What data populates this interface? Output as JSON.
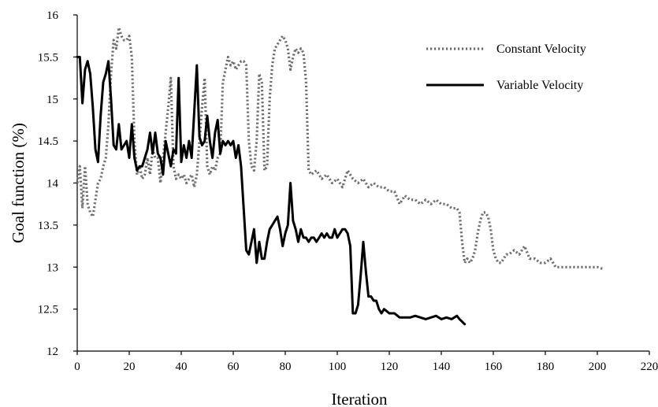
{
  "chart_data": {
    "type": "line",
    "title": "",
    "xlabel": "Iteration",
    "ylabel": "Goal function (%)",
    "xlim": [
      0,
      220
    ],
    "ylim": [
      12,
      16
    ],
    "xticks": [
      0,
      20,
      40,
      60,
      80,
      100,
      120,
      140,
      160,
      180,
      200,
      220
    ],
    "yticks": [
      12,
      12.5,
      13,
      13.5,
      14,
      14.5,
      15,
      15.5,
      16
    ],
    "grid": false,
    "legend_position": "top-right",
    "series": [
      {
        "name": "Constant Velocity",
        "style": "dotted",
        "color": "#6e6e6e",
        "points": [
          [
            0,
            14.0
          ],
          [
            1,
            14.2
          ],
          [
            2,
            13.7
          ],
          [
            3,
            14.2
          ],
          [
            4,
            13.75
          ],
          [
            5,
            13.65
          ],
          [
            6,
            13.6
          ],
          [
            7,
            13.8
          ],
          [
            8,
            14.0
          ],
          [
            9,
            14.05
          ],
          [
            10,
            14.2
          ],
          [
            11,
            14.3
          ],
          [
            12,
            14.7
          ],
          [
            13,
            15.3
          ],
          [
            14,
            15.7
          ],
          [
            15,
            15.6
          ],
          [
            16,
            15.85
          ],
          [
            17,
            15.75
          ],
          [
            18,
            15.7
          ],
          [
            19,
            15.7
          ],
          [
            20,
            15.75
          ],
          [
            21,
            15.5
          ],
          [
            22,
            14.5
          ],
          [
            23,
            14.1
          ],
          [
            24,
            14.2
          ],
          [
            25,
            14.05
          ],
          [
            26,
            14.1
          ],
          [
            27,
            14.3
          ],
          [
            28,
            14.1
          ],
          [
            29,
            14.4
          ],
          [
            30,
            14.3
          ],
          [
            31,
            14.3
          ],
          [
            32,
            14.0
          ],
          [
            33,
            14.3
          ],
          [
            34,
            14.6
          ],
          [
            35,
            14.9
          ],
          [
            36,
            15.25
          ],
          [
            37,
            14.2
          ],
          [
            38,
            14.05
          ],
          [
            39,
            14.1
          ],
          [
            40,
            14.05
          ],
          [
            41,
            14.1
          ],
          [
            42,
            14.0
          ],
          [
            43,
            14.05
          ],
          [
            44,
            14.1
          ],
          [
            45,
            13.95
          ],
          [
            46,
            14.1
          ],
          [
            47,
            14.5
          ],
          [
            48,
            14.9
          ],
          [
            49,
            15.25
          ],
          [
            50,
            14.2
          ],
          [
            51,
            14.1
          ],
          [
            52,
            14.2
          ],
          [
            53,
            14.15
          ],
          [
            54,
            14.3
          ],
          [
            55,
            14.35
          ],
          [
            56,
            15.2
          ],
          [
            57,
            15.35
          ],
          [
            58,
            15.5
          ],
          [
            59,
            15.4
          ],
          [
            60,
            15.45
          ],
          [
            61,
            15.35
          ],
          [
            62,
            15.4
          ],
          [
            63,
            15.45
          ],
          [
            64,
            15.45
          ],
          [
            65,
            15.4
          ],
          [
            66,
            14.5
          ],
          [
            67,
            14.2
          ],
          [
            68,
            14.15
          ],
          [
            69,
            14.5
          ],
          [
            70,
            15.3
          ],
          [
            71,
            15.2
          ],
          [
            72,
            14.15
          ],
          [
            73,
            14.2
          ],
          [
            74,
            15.0
          ],
          [
            75,
            15.4
          ],
          [
            76,
            15.6
          ],
          [
            77,
            15.65
          ],
          [
            78,
            15.7
          ],
          [
            79,
            15.75
          ],
          [
            80,
            15.7
          ],
          [
            81,
            15.6
          ],
          [
            82,
            15.35
          ],
          [
            83,
            15.5
          ],
          [
            84,
            15.6
          ],
          [
            85,
            15.55
          ],
          [
            86,
            15.6
          ],
          [
            87,
            15.55
          ],
          [
            88,
            15.2
          ],
          [
            89,
            14.15
          ],
          [
            90,
            14.1
          ],
          [
            92,
            14.15
          ],
          [
            94,
            14.05
          ],
          [
            96,
            14.1
          ],
          [
            98,
            14.0
          ],
          [
            100,
            14.05
          ],
          [
            102,
            13.95
          ],
          [
            104,
            14.15
          ],
          [
            106,
            14.05
          ],
          [
            108,
            14.0
          ],
          [
            110,
            14.05
          ],
          [
            112,
            13.95
          ],
          [
            114,
            14.0
          ],
          [
            116,
            13.95
          ],
          [
            118,
            13.95
          ],
          [
            120,
            13.9
          ],
          [
            122,
            13.9
          ],
          [
            124,
            13.75
          ],
          [
            126,
            13.85
          ],
          [
            128,
            13.8
          ],
          [
            130,
            13.8
          ],
          [
            132,
            13.75
          ],
          [
            134,
            13.8
          ],
          [
            136,
            13.75
          ],
          [
            138,
            13.8
          ],
          [
            140,
            13.75
          ],
          [
            142,
            13.75
          ],
          [
            144,
            13.7
          ],
          [
            146,
            13.7
          ],
          [
            147,
            13.65
          ],
          [
            148,
            13.3
          ],
          [
            149,
            13.05
          ],
          [
            150,
            13.1
          ],
          [
            151,
            13.05
          ],
          [
            152,
            13.1
          ],
          [
            153,
            13.2
          ],
          [
            154,
            13.4
          ],
          [
            155,
            13.55
          ],
          [
            156,
            13.65
          ],
          [
            157,
            13.65
          ],
          [
            158,
            13.6
          ],
          [
            159,
            13.45
          ],
          [
            160,
            13.2
          ],
          [
            161,
            13.1
          ],
          [
            162,
            13.05
          ],
          [
            163,
            13.05
          ],
          [
            164,
            13.1
          ],
          [
            165,
            13.15
          ],
          [
            166,
            13.15
          ],
          [
            168,
            13.2
          ],
          [
            170,
            13.15
          ],
          [
            172,
            13.25
          ],
          [
            174,
            13.1
          ],
          [
            176,
            13.1
          ],
          [
            178,
            13.05
          ],
          [
            180,
            13.05
          ],
          [
            182,
            13.1
          ],
          [
            184,
            13.0
          ],
          [
            186,
            13.0
          ],
          [
            188,
            13.0
          ],
          [
            190,
            13.0
          ],
          [
            192,
            13.0
          ],
          [
            194,
            13.0
          ],
          [
            196,
            13.0
          ],
          [
            198,
            13.0
          ],
          [
            200,
            13.0
          ],
          [
            202,
            12.98
          ]
        ]
      },
      {
        "name": "Variable Velocity",
        "style": "solid",
        "color": "#000000",
        "points": [
          [
            0,
            15.5
          ],
          [
            1,
            15.5
          ],
          [
            2,
            14.95
          ],
          [
            3,
            15.35
          ],
          [
            4,
            15.45
          ],
          [
            5,
            15.3
          ],
          [
            6,
            14.9
          ],
          [
            7,
            14.4
          ],
          [
            8,
            14.25
          ],
          [
            9,
            14.8
          ],
          [
            10,
            15.2
          ],
          [
            11,
            15.3
          ],
          [
            12,
            15.45
          ],
          [
            13,
            15.0
          ],
          [
            14,
            14.45
          ],
          [
            15,
            14.4
          ],
          [
            16,
            14.7
          ],
          [
            17,
            14.4
          ],
          [
            18,
            14.45
          ],
          [
            19,
            14.5
          ],
          [
            20,
            14.3
          ],
          [
            21,
            14.7
          ],
          [
            22,
            14.3
          ],
          [
            23,
            14.15
          ],
          [
            24,
            14.2
          ],
          [
            25,
            14.2
          ],
          [
            26,
            14.3
          ],
          [
            27,
            14.4
          ],
          [
            28,
            14.6
          ],
          [
            29,
            14.35
          ],
          [
            30,
            14.6
          ],
          [
            31,
            14.35
          ],
          [
            32,
            14.3
          ],
          [
            33,
            14.1
          ],
          [
            34,
            14.5
          ],
          [
            35,
            14.35
          ],
          [
            36,
            14.2
          ],
          [
            37,
            14.4
          ],
          [
            38,
            14.35
          ],
          [
            39,
            15.25
          ],
          [
            40,
            14.25
          ],
          [
            41,
            14.45
          ],
          [
            42,
            14.3
          ],
          [
            43,
            14.5
          ],
          [
            44,
            14.3
          ],
          [
            45,
            14.85
          ],
          [
            46,
            15.4
          ],
          [
            47,
            14.55
          ],
          [
            48,
            14.45
          ],
          [
            49,
            14.5
          ],
          [
            50,
            14.8
          ],
          [
            51,
            14.5
          ],
          [
            52,
            14.3
          ],
          [
            53,
            14.6
          ],
          [
            54,
            14.75
          ],
          [
            55,
            14.35
          ],
          [
            56,
            14.5
          ],
          [
            57,
            14.45
          ],
          [
            58,
            14.5
          ],
          [
            59,
            14.45
          ],
          [
            60,
            14.5
          ],
          [
            61,
            14.3
          ],
          [
            62,
            14.45
          ],
          [
            63,
            14.2
          ],
          [
            64,
            13.7
          ],
          [
            65,
            13.2
          ],
          [
            66,
            13.15
          ],
          [
            67,
            13.3
          ],
          [
            68,
            13.45
          ],
          [
            69,
            13.05
          ],
          [
            70,
            13.3
          ],
          [
            71,
            13.1
          ],
          [
            72,
            13.1
          ],
          [
            73,
            13.3
          ],
          [
            74,
            13.45
          ],
          [
            75,
            13.5
          ],
          [
            76,
            13.55
          ],
          [
            77,
            13.6
          ],
          [
            78,
            13.45
          ],
          [
            79,
            13.25
          ],
          [
            80,
            13.4
          ],
          [
            81,
            13.5
          ],
          [
            82,
            14.0
          ],
          [
            83,
            13.55
          ],
          [
            84,
            13.45
          ],
          [
            85,
            13.3
          ],
          [
            86,
            13.45
          ],
          [
            87,
            13.35
          ],
          [
            88,
            13.35
          ],
          [
            89,
            13.3
          ],
          [
            90,
            13.35
          ],
          [
            91,
            13.35
          ],
          [
            92,
            13.3
          ],
          [
            93,
            13.35
          ],
          [
            94,
            13.4
          ],
          [
            95,
            13.35
          ],
          [
            96,
            13.4
          ],
          [
            97,
            13.35
          ],
          [
            98,
            13.35
          ],
          [
            99,
            13.45
          ],
          [
            100,
            13.35
          ],
          [
            101,
            13.4
          ],
          [
            102,
            13.45
          ],
          [
            103,
            13.45
          ],
          [
            104,
            13.4
          ],
          [
            105,
            13.25
          ],
          [
            106,
            12.45
          ],
          [
            107,
            12.45
          ],
          [
            108,
            12.55
          ],
          [
            109,
            12.9
          ],
          [
            110,
            13.3
          ],
          [
            111,
            12.95
          ],
          [
            112,
            12.65
          ],
          [
            113,
            12.65
          ],
          [
            114,
            12.6
          ],
          [
            115,
            12.6
          ],
          [
            116,
            12.5
          ],
          [
            117,
            12.45
          ],
          [
            118,
            12.5
          ],
          [
            120,
            12.45
          ],
          [
            122,
            12.45
          ],
          [
            124,
            12.4
          ],
          [
            126,
            12.4
          ],
          [
            128,
            12.4
          ],
          [
            130,
            12.42
          ],
          [
            132,
            12.4
          ],
          [
            134,
            12.38
          ],
          [
            136,
            12.4
          ],
          [
            138,
            12.42
          ],
          [
            140,
            12.38
          ],
          [
            142,
            12.4
          ],
          [
            144,
            12.38
          ],
          [
            146,
            12.42
          ],
          [
            147,
            12.38
          ],
          [
            148,
            12.35
          ],
          [
            149,
            12.32
          ]
        ]
      }
    ]
  }
}
